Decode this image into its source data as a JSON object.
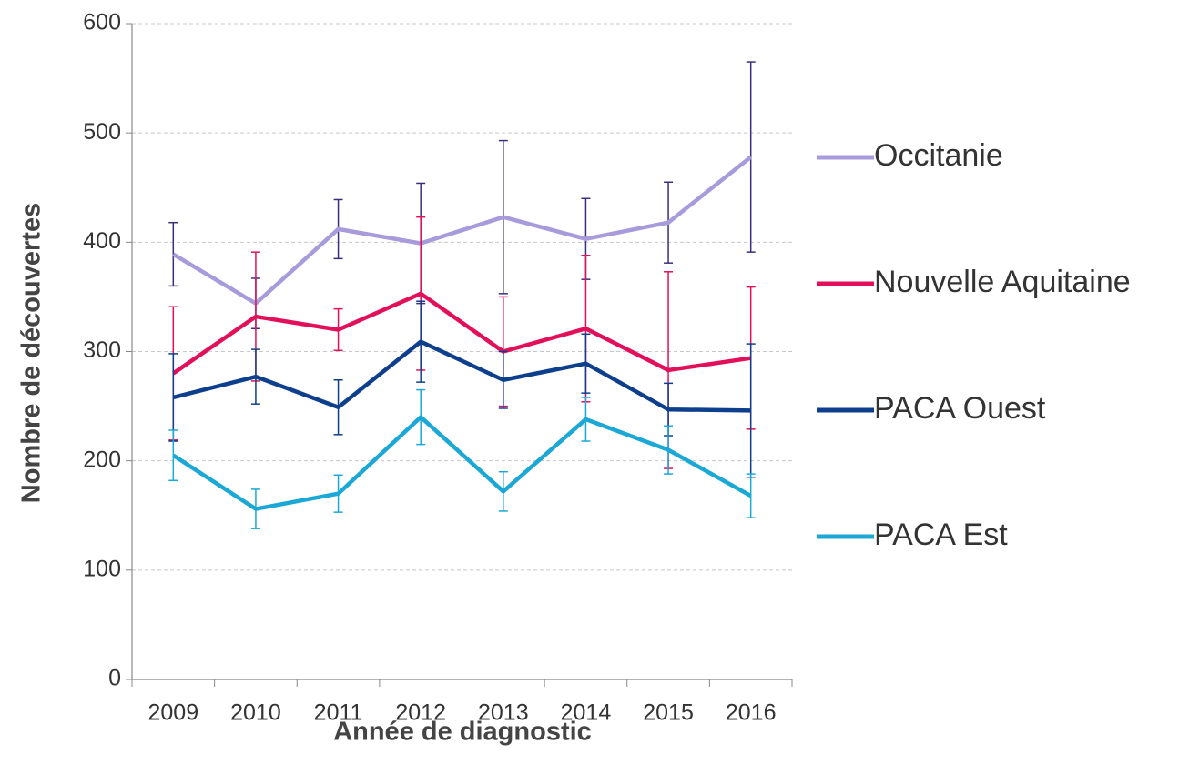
{
  "chart_data": {
    "type": "line",
    "x_label": "Année de diagnostic",
    "y_label": "Nombre de découvertes",
    "categories": [
      "2009",
      "2010",
      "2011",
      "2012",
      "2013",
      "2014",
      "2015",
      "2016"
    ],
    "ylim": [
      0,
      600
    ],
    "yticks": [
      0,
      100,
      200,
      300,
      400,
      500,
      600
    ],
    "grid": true,
    "legend": "right",
    "series": [
      {
        "name": "Occitanie",
        "color": "#a89bdc",
        "error_color": "#3b2f7c",
        "values": [
          389,
          344,
          412,
          399,
          423,
          403,
          418,
          478
        ],
        "errors": [
          29,
          23,
          27,
          55,
          70,
          37,
          37,
          87
        ]
      },
      {
        "name": "Nouvelle Aquitaine",
        "color": "#e2105b",
        "error_color": "#e2105b",
        "values": [
          280,
          332,
          320,
          353,
          300,
          321,
          283,
          294
        ],
        "errors": [
          61,
          59,
          19,
          70,
          50,
          67,
          90,
          65
        ]
      },
      {
        "name": "PACA Ouest",
        "color": "#0e3f8c",
        "error_color": "#0e3f8c",
        "values": [
          258,
          277,
          249,
          309,
          274,
          289,
          247,
          246
        ],
        "errors": [
          40,
          25,
          25,
          37,
          26,
          27,
          24,
          61
        ]
      },
      {
        "name": "PACA Est",
        "color": "#1ba8d6",
        "error_color": "#1ba8d6",
        "values": [
          205,
          156,
          170,
          240,
          172,
          238,
          210,
          168
        ],
        "errors": [
          23,
          18,
          17,
          25,
          18,
          20,
          22,
          20
        ]
      }
    ]
  }
}
